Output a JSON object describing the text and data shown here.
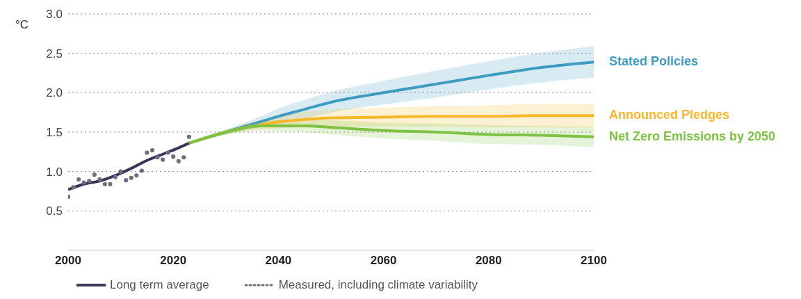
{
  "chart_data": {
    "type": "line",
    "ylabel": "°C",
    "xlim": [
      2000,
      2100
    ],
    "xticks": [
      2000,
      2020,
      2040,
      2060,
      2080,
      2100
    ],
    "ylim": [
      0,
      3
    ],
    "yticks": [
      0.5,
      {
        "value": 1,
        "label": "1.0"
      },
      1.5,
      {
        "value": 2,
        "label": "2.0"
      },
      2.5,
      {
        "value": 3,
        "label": "3.0"
      }
    ],
    "grid": "y",
    "legend": "bottom",
    "line_style": "solid",
    "series": [
      {
        "name": "Stated Policies",
        "color": "#3d9cc0",
        "x": [
          2023,
          2030,
          2037,
          2040,
          2045,
          2050,
          2060,
          2070,
          2080,
          2090,
          2100
        ],
        "values": [
          1.36,
          1.5,
          1.64,
          1.7,
          1.79,
          1.88,
          2.0,
          2.11,
          2.22,
          2.32,
          2.39
        ],
        "lower": [
          1.36,
          1.47,
          1.57,
          1.6,
          1.67,
          1.75,
          1.85,
          1.94,
          2.04,
          2.13,
          2.19
        ],
        "upper": [
          1.36,
          1.53,
          1.71,
          1.8,
          1.91,
          2.01,
          2.15,
          2.28,
          2.4,
          2.51,
          2.59
        ]
      },
      {
        "name": "Announced Pledges",
        "color": "#f5b82a",
        "x": [
          2023,
          2030,
          2037,
          2040,
          2045,
          2050,
          2060,
          2070,
          2080,
          2090,
          2100
        ],
        "values": [
          1.36,
          1.5,
          1.6,
          1.63,
          1.66,
          1.68,
          1.69,
          1.7,
          1.7,
          1.71,
          1.71
        ],
        "lower": [
          1.36,
          1.47,
          1.54,
          1.55,
          1.56,
          1.57,
          1.57,
          1.57,
          1.56,
          1.56,
          1.56
        ],
        "upper": [
          1.36,
          1.53,
          1.66,
          1.71,
          1.76,
          1.79,
          1.81,
          1.83,
          1.84,
          1.86,
          1.86
        ]
      },
      {
        "name": "Net Zero Emissions by 2050",
        "color": "#7dc242",
        "x": [
          2023,
          2030,
          2037,
          2040,
          2045,
          2050,
          2060,
          2070,
          2080,
          2090,
          2100
        ],
        "values": [
          1.36,
          1.5,
          1.58,
          1.58,
          1.58,
          1.56,
          1.52,
          1.5,
          1.47,
          1.46,
          1.44
        ],
        "lower": [
          1.36,
          1.47,
          1.52,
          1.51,
          1.5,
          1.47,
          1.42,
          1.39,
          1.35,
          1.34,
          1.31
        ],
        "upper": [
          1.36,
          1.53,
          1.64,
          1.65,
          1.66,
          1.65,
          1.62,
          1.61,
          1.59,
          1.58,
          1.57
        ]
      },
      {
        "name": "Long term average",
        "color": "#3e3556",
        "x": [
          2000,
          2003,
          2006,
          2009,
          2012,
          2015,
          2018,
          2021,
          2023
        ],
        "values": [
          0.77,
          0.84,
          0.88,
          0.95,
          1.04,
          1.14,
          1.22,
          1.3,
          1.36
        ]
      },
      {
        "name": "Measured, including climate variability",
        "type": "scatter",
        "marker": "circle",
        "color": "#6e6e80",
        "x": [
          2000,
          2001,
          2002,
          2003,
          2004,
          2005,
          2006,
          2007,
          2008,
          2009,
          2010,
          2011,
          2012,
          2013,
          2014,
          2015,
          2016,
          2017,
          2018,
          2019,
          2020,
          2021,
          2022,
          2023
        ],
        "values": [
          0.68,
          0.8,
          0.9,
          0.86,
          0.88,
          0.96,
          0.9,
          0.84,
          0.84,
          0.93,
          1.0,
          0.89,
          0.92,
          0.95,
          1.01,
          1.24,
          1.27,
          1.18,
          1.15,
          1.24,
          1.19,
          1.13,
          1.18,
          1.44
        ]
      }
    ]
  }
}
